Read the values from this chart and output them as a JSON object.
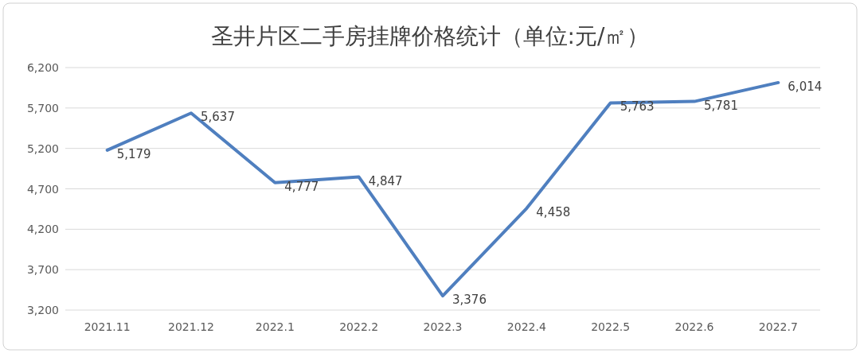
{
  "chart_data": {
    "type": "line",
    "title": "圣井片区二手房挂牌价格统计（单位:元/㎡）",
    "categories": [
      "2021.11",
      "2021.12",
      "2022.1",
      "2022.2",
      "2022.3",
      "2022.4",
      "2022.5",
      "2022.6",
      "2022.7"
    ],
    "series": [
      {
        "color": "#4f7fbf",
        "values": [
          5179,
          5637,
          4777,
          4847,
          3376,
          4458,
          5763,
          5781,
          6014
        ],
        "value_labels": [
          "5,179",
          "5,637",
          "4,777",
          "4,847",
          "3,376",
          "4,458",
          "5,763",
          "5,781",
          "6,014"
        ]
      }
    ],
    "ylim": [
      3200,
      6200
    ],
    "yticks": [
      {
        "value": 3200,
        "label": "3,200"
      },
      {
        "value": 3700,
        "label": "3,700"
      },
      {
        "value": 4200,
        "label": "4,200"
      },
      {
        "value": 4700,
        "label": "4,700"
      },
      {
        "value": 5200,
        "label": "5,200"
      },
      {
        "value": 5700,
        "label": "5,700"
      },
      {
        "value": 6200,
        "label": "6,200"
      }
    ],
    "grid": "y",
    "marker": "none",
    "line_style": "solid"
  }
}
